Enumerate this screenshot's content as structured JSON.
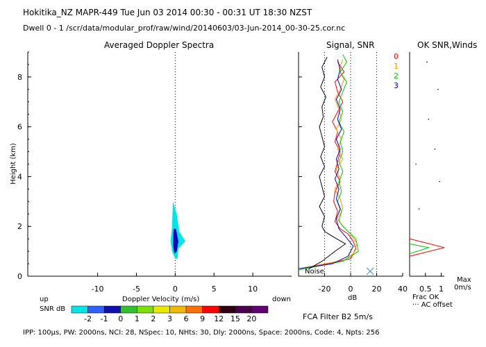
{
  "header": {
    "line1": "Hokitika_NZ   MAPR-449   Tue Jun 03 2014 00:30  -  00:31 UT 18:30 NZST",
    "line2": "Dwell   0  -   1    /scr/data/modular_prof/raw/wind/20140603/03-Jun-2014_00-30-25.cor.nc"
  },
  "labels": {
    "up": "up",
    "down": "down",
    "snr_db": "SNR dB",
    "noise": "Noise",
    "db": "dB",
    "frac_ok": "Frac OK",
    "ac_offset": "··· AC offset",
    "max": "Max",
    "max_unit": "0m/s",
    "filter": "FCA Filter B2   5m/s",
    "footer": "IPP: 100μs,   PW: 2000ns,   NCI:   28,   NSpec: 10,  NHts: 30,   Dly: 2000ns,   Space: 2000ns,   Code: 4,   Npts: 256"
  },
  "colors": {
    "axis": "#000000",
    "dwell0": "#ff0000",
    "dwell1": "#ff9900",
    "dwell2": "#00cc00",
    "dwell3": "#0000cc"
  },
  "colorbar": {
    "labels": [
      "-2",
      "-1",
      "0",
      "1",
      "2",
      "3",
      "6",
      "9",
      "12",
      "15",
      "20"
    ],
    "colors": [
      "#00e5e5",
      "#3060ff",
      "#1010b0",
      "#30c030",
      "#7be000",
      "#e8e800",
      "#f0b800",
      "#ff7000",
      "#ff0000",
      "#300010",
      "#4a004a",
      "#600070"
    ]
  },
  "chart_data": [
    {
      "type": "heatmap",
      "title": "Averaged Doppler Spectra",
      "xlabel": "Doppler Velocity (m/s)",
      "ylabel": "Height (km)",
      "xlim": [
        -19,
        15
      ],
      "ylim": [
        0,
        9
      ],
      "xticks": [
        "-10",
        "-5",
        "0",
        "5",
        "10"
      ],
      "yticks": [
        "0",
        "2",
        "4",
        "6",
        "8"
      ],
      "zero_line": 0,
      "layers": [
        {
          "color": "cyan",
          "points": [
            [
              0.0,
              0.7
            ],
            [
              -0.4,
              1.0
            ],
            [
              -0.6,
              1.4
            ],
            [
              -0.4,
              2.0
            ],
            [
              -0.3,
              3.0
            ],
            [
              0.2,
              2.5
            ],
            [
              0.5,
              1.8
            ],
            [
              1.3,
              1.4
            ],
            [
              0.4,
              1.1
            ],
            [
              0.3,
              0.7
            ]
          ]
        },
        {
          "color": "blue",
          "points": [
            [
              -0.1,
              0.9
            ],
            [
              -0.3,
              1.3
            ],
            [
              -0.2,
              1.9
            ],
            [
              0.1,
              1.9
            ],
            [
              0.4,
              1.4
            ],
            [
              0.2,
              1.0
            ]
          ]
        },
        {
          "color": "dark-blue",
          "points": [
            [
              0.0,
              1.05
            ],
            [
              -0.1,
              1.4
            ],
            [
              0.05,
              1.75
            ],
            [
              0.25,
              1.4
            ],
            [
              0.15,
              1.1
            ]
          ]
        }
      ]
    },
    {
      "type": "line",
      "title": "Signal, SNR",
      "xlabel": "dB",
      "xlim": [
        -40,
        40
      ],
      "ylim": [
        0,
        9
      ],
      "xticks": [
        "-20",
        "0",
        "20",
        "40"
      ],
      "dotted_lines": [
        -20,
        0,
        20
      ],
      "legend": [
        "0",
        "1",
        "2",
        "3"
      ],
      "series": [
        {
          "name": "0",
          "color": "red",
          "points": [
            [
              -40,
              0.3
            ],
            [
              -18,
              0.5
            ],
            [
              0,
              0.7
            ],
            [
              4,
              1.1
            ],
            [
              2,
              1.4
            ],
            [
              -2,
              1.7
            ],
            [
              -8,
              1.9
            ],
            [
              -12,
              2.2
            ],
            [
              -10,
              2.6
            ],
            [
              -13,
              3.0
            ],
            [
              -12,
              3.4
            ],
            [
              -8,
              3.8
            ],
            [
              -12,
              4.2
            ],
            [
              -10,
              4.6
            ],
            [
              -8,
              5.0
            ],
            [
              -12,
              5.4
            ],
            [
              -10,
              5.8
            ],
            [
              -14,
              6.2
            ],
            [
              -10,
              6.6
            ],
            [
              -6,
              7.0
            ],
            [
              -10,
              7.4
            ],
            [
              -12,
              7.8
            ],
            [
              -5,
              8.2
            ],
            [
              -10,
              8.6
            ]
          ]
        },
        {
          "name": "1",
          "color": "orange",
          "points": [
            [
              -40,
              0.3
            ],
            [
              -10,
              0.6
            ],
            [
              2,
              0.9
            ],
            [
              5,
              1.3
            ],
            [
              0,
              1.7
            ],
            [
              -6,
              2.0
            ],
            [
              -10,
              2.3
            ],
            [
              -6,
              2.7
            ],
            [
              -8,
              3.1
            ],
            [
              -12,
              3.5
            ],
            [
              -8,
              3.9
            ],
            [
              -11,
              4.3
            ],
            [
              -6,
              4.7
            ],
            [
              -10,
              5.1
            ],
            [
              -7,
              5.5
            ],
            [
              -11,
              5.9
            ],
            [
              -7,
              6.3
            ],
            [
              -9,
              6.7
            ],
            [
              -12,
              7.1
            ],
            [
              -8,
              7.5
            ],
            [
              -5,
              7.9
            ],
            [
              -9,
              8.3
            ],
            [
              -6,
              8.7
            ]
          ]
        },
        {
          "name": "2",
          "color": "green",
          "points": [
            [
              -40,
              0.25
            ],
            [
              -6,
              0.6
            ],
            [
              6,
              1.0
            ],
            [
              4,
              1.5
            ],
            [
              -4,
              1.9
            ],
            [
              -9,
              2.2
            ],
            [
              -7,
              2.6
            ],
            [
              -10,
              3.0
            ],
            [
              -7,
              3.4
            ],
            [
              -9,
              3.8
            ],
            [
              -6,
              4.2
            ],
            [
              -9,
              4.6
            ],
            [
              -6,
              5.0
            ],
            [
              -8,
              5.4
            ],
            [
              -5,
              5.8
            ],
            [
              -9,
              6.2
            ],
            [
              -6,
              6.6
            ],
            [
              -9,
              7.0
            ],
            [
              -6,
              7.4
            ],
            [
              -3,
              7.8
            ],
            [
              -8,
              8.2
            ],
            [
              -3,
              8.6
            ],
            [
              -6,
              8.9
            ]
          ]
        },
        {
          "name": "3",
          "color": "blue",
          "points": [
            [
              -40,
              0.3
            ],
            [
              -14,
              0.5
            ],
            [
              -2,
              0.8
            ],
            [
              2,
              1.2
            ],
            [
              -4,
              1.6
            ],
            [
              -9,
              1.9
            ],
            [
              -11,
              2.3
            ],
            [
              -8,
              2.7
            ],
            [
              -11,
              3.1
            ],
            [
              -9,
              3.5
            ],
            [
              -12,
              3.9
            ],
            [
              -9,
              4.3
            ],
            [
              -11,
              4.7
            ],
            [
              -8,
              5.1
            ],
            [
              -11,
              5.5
            ],
            [
              -7,
              5.9
            ],
            [
              -10,
              6.3
            ],
            [
              -8,
              6.7
            ],
            [
              -11,
              7.1
            ],
            [
              -7,
              7.5
            ],
            [
              -10,
              7.9
            ],
            [
              -8,
              8.3
            ],
            [
              -10,
              8.7
            ]
          ]
        },
        {
          "name": "noise",
          "color": "black",
          "points": [
            [
              -32,
              0.3
            ],
            [
              -22,
              0.6
            ],
            [
              -12,
              1.0
            ],
            [
              -4,
              1.3
            ],
            [
              -14,
              1.6
            ],
            [
              -20,
              1.8
            ],
            [
              -22,
              2.0
            ],
            [
              -20,
              2.4
            ],
            [
              -24,
              2.8
            ],
            [
              -20,
              3.2
            ],
            [
              -22,
              3.6
            ],
            [
              -24,
              4.0
            ],
            [
              -20,
              4.4
            ],
            [
              -23,
              4.8
            ],
            [
              -20,
              5.2
            ],
            [
              -22,
              5.6
            ],
            [
              -24,
              6.0
            ],
            [
              -21,
              6.4
            ],
            [
              -22,
              6.8
            ],
            [
              -19,
              7.2
            ],
            [
              -23,
              7.6
            ],
            [
              -20,
              8.0
            ],
            [
              -22,
              8.4
            ],
            [
              -18,
              8.8
            ]
          ]
        }
      ]
    },
    {
      "type": "line",
      "title": "OK SNR,Winds",
      "xlabel": "Frac OK",
      "xlim": [
        0,
        1.1
      ],
      "ylim": [
        0,
        9
      ],
      "xticks": [
        "0.5",
        "1"
      ],
      "series": [
        {
          "name": "red",
          "color": "red",
          "points": [
            [
              0,
              1.5
            ],
            [
              1.1,
              1.15
            ],
            [
              0,
              0.8
            ]
          ]
        },
        {
          "name": "green",
          "color": "green",
          "points": [
            [
              0,
              1.3
            ],
            [
              0.6,
              1.15
            ],
            [
              0,
              0.9
            ]
          ]
        }
      ]
    }
  ]
}
